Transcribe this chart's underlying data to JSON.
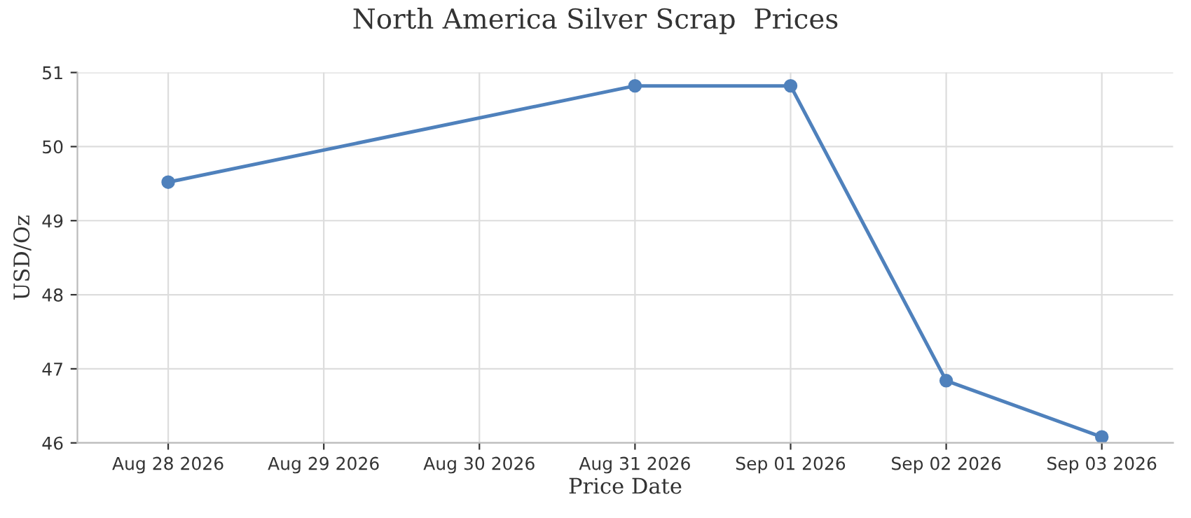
{
  "chart_data": {
    "type": "line",
    "title": "North America Silver Scrap  Prices",
    "xlabel": "Price Date",
    "ylabel": "USD/Oz",
    "x": [
      "2026-08-28",
      "2026-08-31",
      "2026-09-01",
      "2026-09-02",
      "2026-09-03"
    ],
    "series": [
      {
        "color": "#4f81bc",
        "values": [
          49.52,
          50.82,
          50.82,
          46.84,
          46.08
        ]
      }
    ],
    "xlim": [
      "2026-08-27T10:00",
      "2026-09-03T11:00"
    ],
    "xticks": [
      {
        "value": "2026-08-28",
        "label": "Aug 28 2026"
      },
      {
        "value": "2026-08-29",
        "label": "Aug 29 2026"
      },
      {
        "value": "2026-08-30",
        "label": "Aug 30 2026"
      },
      {
        "value": "2026-08-31",
        "label": "Aug 31 2026"
      },
      {
        "value": "2026-09-01",
        "label": "Sep 01 2026"
      },
      {
        "value": "2026-09-02",
        "label": "Sep 02 2026"
      },
      {
        "value": "2026-09-03",
        "label": "Sep 03 2026"
      }
    ],
    "ylim": [
      46,
      51
    ],
    "yticks": [
      46,
      47,
      48,
      49,
      50,
      51
    ],
    "grid": true,
    "marker": "circle",
    "line_style": "solid"
  }
}
